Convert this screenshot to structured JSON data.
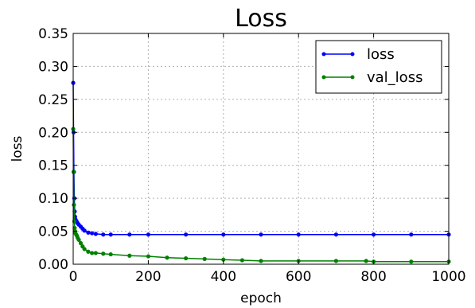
{
  "chart_data": {
    "type": "line",
    "title": "Loss",
    "xlabel": "epoch",
    "ylabel": "loss",
    "xlim": [
      0,
      1000
    ],
    "ylim": [
      0,
      0.35
    ],
    "xticks": [
      0,
      200,
      400,
      600,
      800,
      1000
    ],
    "xtick_labels": [
      "0",
      "200",
      "400",
      "600",
      "800",
      "1000"
    ],
    "yticks": [
      0,
      0.05,
      0.1,
      0.15,
      0.2,
      0.25,
      0.3,
      0.35
    ],
    "ytick_labels": [
      "0.00",
      "0.05",
      "0.10",
      "0.15",
      "0.20",
      "0.25",
      "0.30",
      "0.35"
    ],
    "grid": true,
    "legend_position": "top-right",
    "series": [
      {
        "name": "loss",
        "color": "#0000ff",
        "x": [
          0,
          1,
          2,
          3,
          4,
          5,
          6,
          8,
          10,
          12,
          15,
          20,
          25,
          30,
          40,
          50,
          60,
          80,
          100,
          150,
          200,
          300,
          400,
          500,
          600,
          700,
          800,
          900,
          1000
        ],
        "y": [
          0.275,
          0.2,
          0.14,
          0.1,
          0.08,
          0.072,
          0.068,
          0.066,
          0.064,
          0.062,
          0.06,
          0.057,
          0.054,
          0.051,
          0.048,
          0.047,
          0.046,
          0.045,
          0.045,
          0.045,
          0.045,
          0.045,
          0.045,
          0.045,
          0.045,
          0.045,
          0.045,
          0.045,
          0.045
        ]
      },
      {
        "name": "val_loss",
        "color": "#008000",
        "x": [
          0,
          1,
          2,
          3,
          4,
          5,
          6,
          8,
          10,
          12,
          15,
          20,
          25,
          30,
          40,
          50,
          60,
          80,
          100,
          150,
          200,
          250,
          300,
          350,
          400,
          450,
          500,
          600,
          700,
          780,
          800,
          900,
          1000
        ],
        "y": [
          0.205,
          0.14,
          0.09,
          0.065,
          0.055,
          0.05,
          0.047,
          0.045,
          0.043,
          0.04,
          0.037,
          0.032,
          0.027,
          0.023,
          0.019,
          0.017,
          0.017,
          0.016,
          0.015,
          0.013,
          0.012,
          0.01,
          0.009,
          0.008,
          0.007,
          0.006,
          0.005,
          0.005,
          0.005,
          0.005,
          0.004,
          0.004,
          0.004
        ]
      }
    ]
  }
}
